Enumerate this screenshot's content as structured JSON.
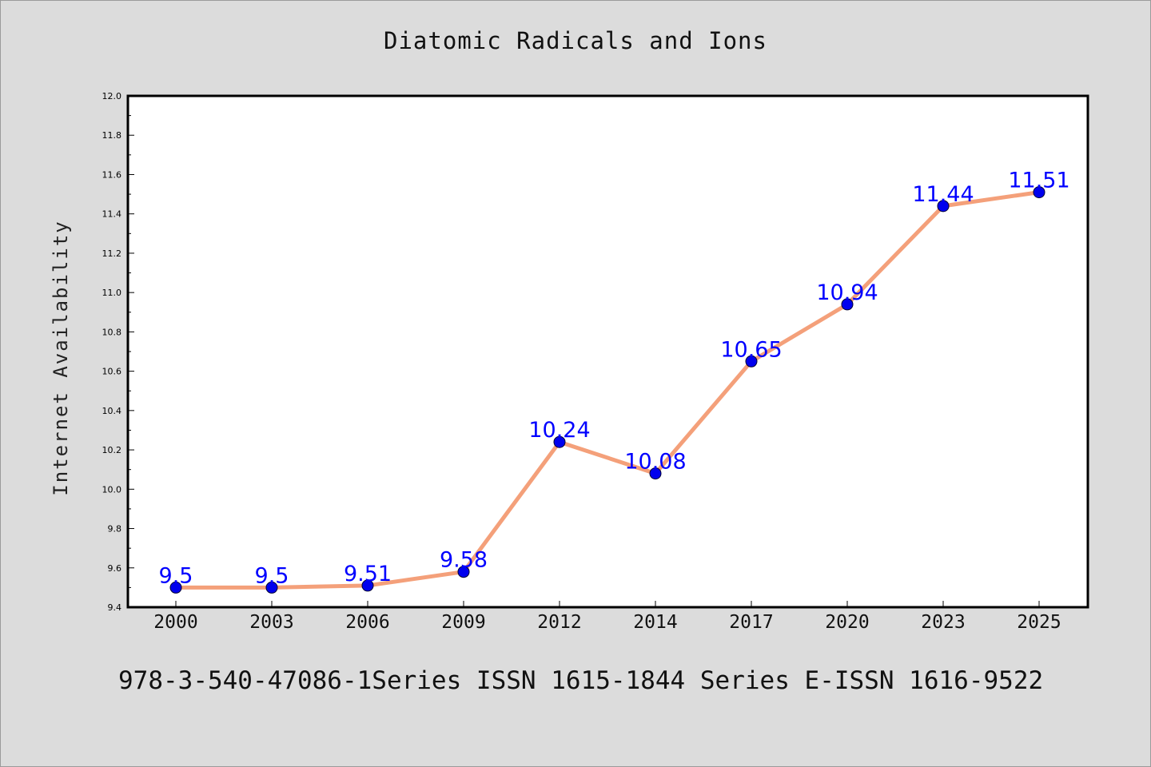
{
  "chart_data": {
    "type": "line",
    "title": "Diatomic Radicals and Ions",
    "xlabel": "",
    "ylabel": "Internet Availability",
    "categories": [
      "2000",
      "2003",
      "2006",
      "2009",
      "2012",
      "2014",
      "2017",
      "2020",
      "2023",
      "2025"
    ],
    "values": [
      9.5,
      9.5,
      9.51,
      9.58,
      10.24,
      10.08,
      10.65,
      10.94,
      11.44,
      11.51
    ],
    "data_labels": [
      "9.5",
      "9.5",
      "9.51",
      "9.58",
      "10.24",
      "10.08",
      "10.65",
      "10.94",
      "11.44",
      "11.51"
    ],
    "ylim": [
      9.4,
      12.0
    ],
    "yticks": [
      "9.4",
      "9.6",
      "9.8",
      "10.0",
      "10.2",
      "10.4",
      "10.6",
      "10.8",
      "11.0",
      "11.2",
      "11.4",
      "11.6",
      "11.8",
      "12.0"
    ],
    "grid": false,
    "colors": {
      "line": "#f4a07a",
      "marker": "#0000ee",
      "label": "#0000ff"
    }
  },
  "footer": {
    "text": "978-3-540-47086-1Series ISSN 1615-1844 Series E-ISSN 1616-9522"
  }
}
